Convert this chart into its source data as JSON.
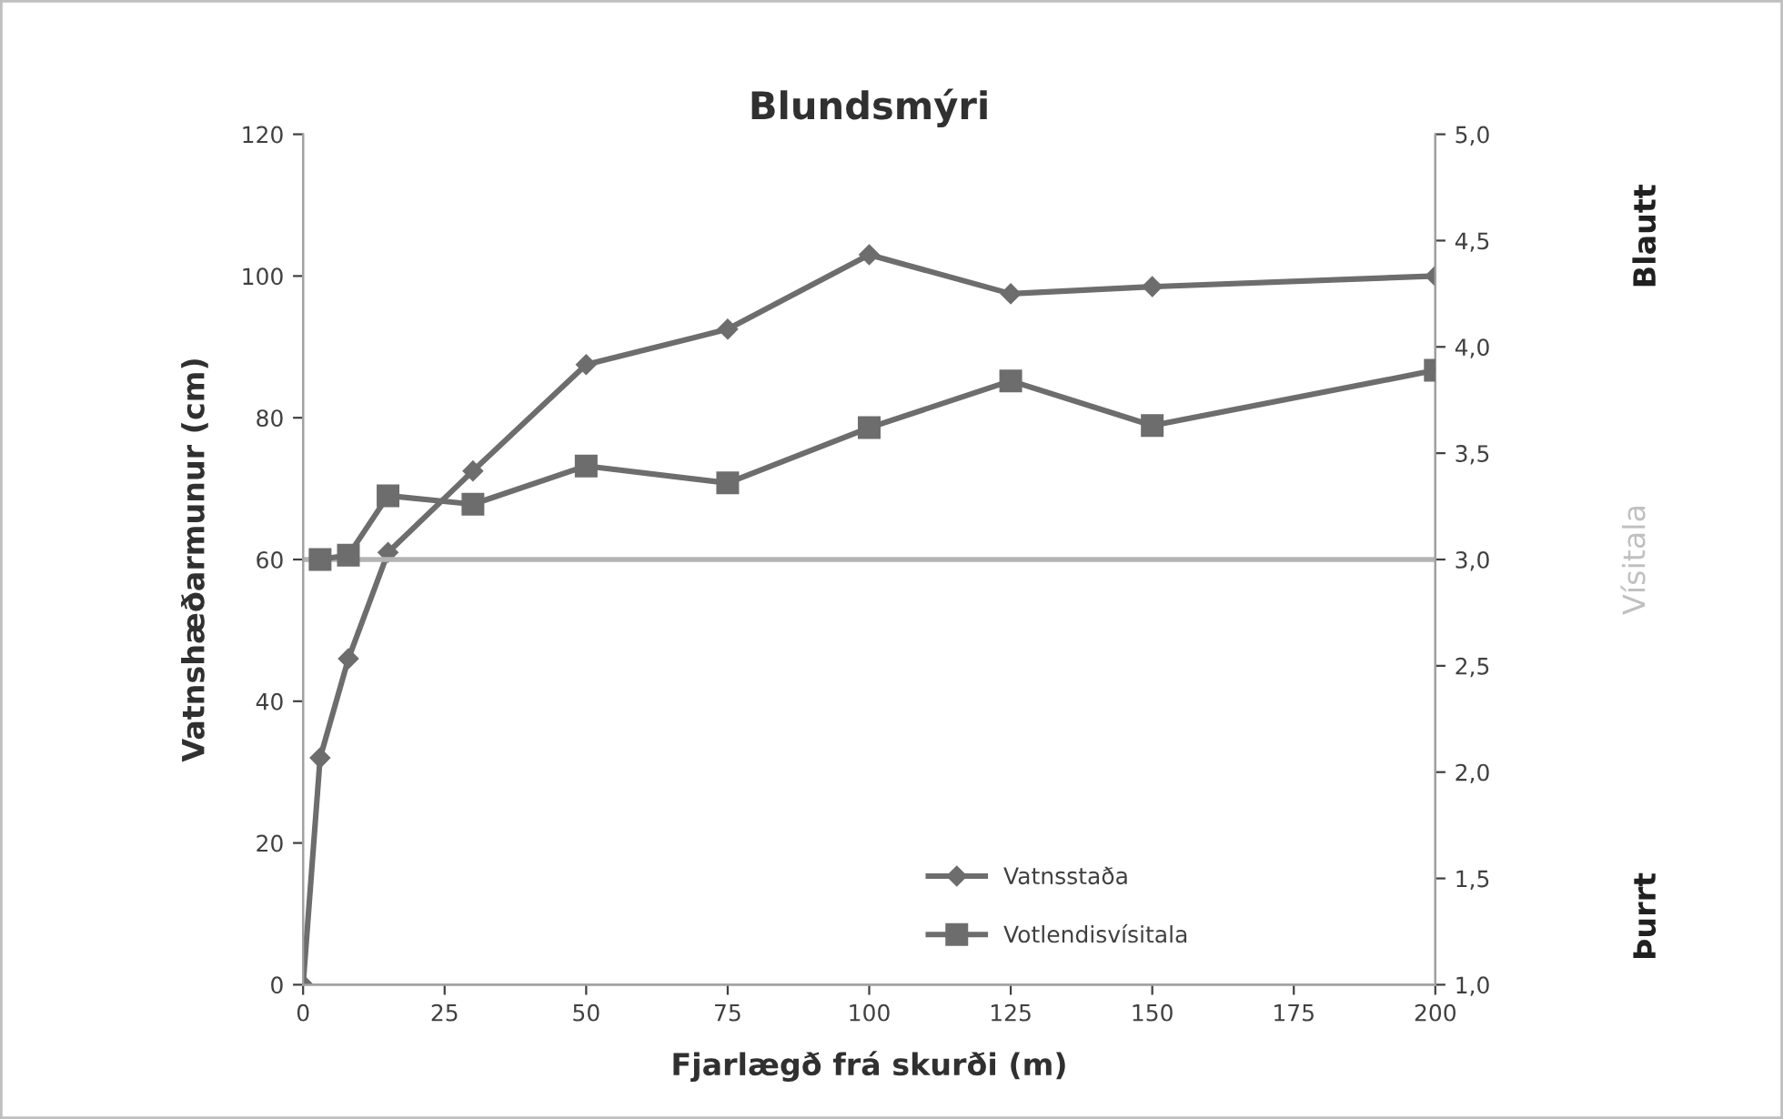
{
  "chart_data": {
    "type": "line",
    "title": "Blundsmýri",
    "xlabel": "Fjarlægð frá skurði (m)",
    "ylabel": "Vatnshæðarmunur (cm)",
    "y2label": "Vísitala",
    "series": [
      {
        "name": "Vatnsstaða",
        "color": "#6d6d6d",
        "marker": "diamond",
        "x": [
          0,
          3,
          8,
          15,
          30,
          50,
          75,
          100,
          125,
          150,
          200
        ],
        "values": [
          0,
          32,
          46,
          61,
          72.5,
          87.5,
          92.5,
          103,
          97.5,
          98.5,
          100
        ]
      },
      {
        "name": "Votlendisvísitala",
        "color": "#6d6d6d",
        "marker": "square",
        "axis": "y2",
        "x": [
          3,
          8,
          15,
          30,
          50,
          75,
          100,
          125,
          150,
          200
        ],
        "values": [
          3.0,
          3.02,
          3.3,
          3.26,
          3.44,
          3.36,
          3.62,
          3.84,
          3.63,
          3.89
        ]
      }
    ],
    "ref_lines": [
      {
        "axis": "y2",
        "value": 3.0,
        "color": "#b4b4b4"
      }
    ],
    "annotations": [
      "Blautt",
      "Þurrt"
    ],
    "xlim": [
      0,
      200
    ],
    "xticks": [
      0,
      25,
      50,
      75,
      100,
      125,
      150,
      175,
      200
    ],
    "ylim": [
      0,
      120
    ],
    "yticks": [
      0,
      20,
      40,
      60,
      80,
      100,
      120
    ],
    "y2lim": [
      1.0,
      5.0
    ],
    "y2ticks": [
      {
        "value": 1.0,
        "label": "1,0"
      },
      {
        "value": 1.5,
        "label": "1,5"
      },
      {
        "value": 2.0,
        "label": "2,0"
      },
      {
        "value": 2.5,
        "label": "2,5"
      },
      {
        "value": 3.0,
        "label": "3,0"
      },
      {
        "value": 3.5,
        "label": "3,5"
      },
      {
        "value": 4.0,
        "label": "4,0"
      },
      {
        "value": 4.5,
        "label": "4,5"
      },
      {
        "value": 5.0,
        "label": "5,0"
      }
    ],
    "grid": false,
    "legend": "bottom right",
    "line_style": "solid"
  }
}
